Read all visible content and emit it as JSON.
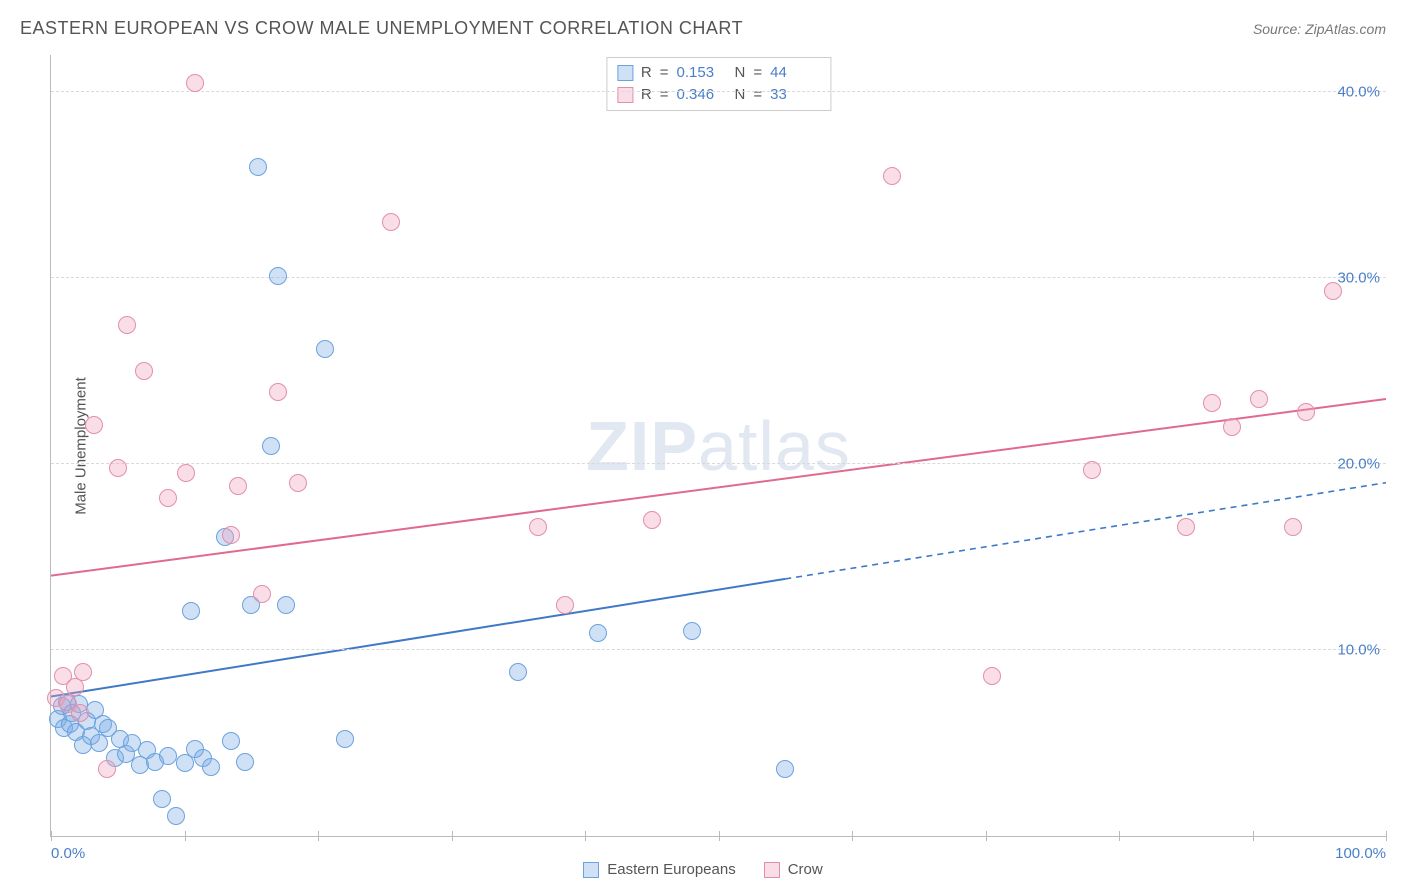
{
  "header": {
    "title": "EASTERN EUROPEAN VS CROW MALE UNEMPLOYMENT CORRELATION CHART",
    "source_label": "Source:",
    "source_name": "ZipAtlas.com"
  },
  "ylabel": "Male Unemployment",
  "watermark": {
    "part1": "ZIP",
    "part2": "atlas"
  },
  "chart": {
    "type": "scatter-with-trend",
    "background_color": "#ffffff",
    "grid_color": "#d9d9d9",
    "axis_color": "#bbbbbb",
    "label_color": "#4a7ec9",
    "title_color": "#555555",
    "xlim": [
      0,
      100
    ],
    "ylim": [
      0,
      42
    ],
    "y_ticks": [
      10,
      20,
      30,
      40
    ],
    "y_tick_labels": [
      "10.0%",
      "20.0%",
      "30.0%",
      "40.0%"
    ],
    "x_ticks": [
      0,
      10,
      20,
      30,
      40,
      50,
      60,
      70,
      80,
      90,
      100
    ],
    "x_tick_labels": {
      "min": "0.0%",
      "max": "100.0%"
    },
    "marker_radius": 9,
    "marker_border_width": 1.5,
    "trend_line_width": 2,
    "series": [
      {
        "name": "Eastern Europeans",
        "fill_color": "rgba(120,170,230,0.35)",
        "border_color": "#6aa3de",
        "trend_color": "#3e78c7",
        "trend": {
          "x0": 0,
          "y0": 7.5,
          "x1": 100,
          "y1": 19.0,
          "solid_until_x": 55
        },
        "r_value": "0.153",
        "n_value": "44",
        "points": [
          [
            0.5,
            6.3
          ],
          [
            0.8,
            7.0
          ],
          [
            1.0,
            5.8
          ],
          [
            1.2,
            7.2
          ],
          [
            1.4,
            6.0
          ],
          [
            1.6,
            6.6
          ],
          [
            1.9,
            5.6
          ],
          [
            2.1,
            7.1
          ],
          [
            2.4,
            4.9
          ],
          [
            2.7,
            6.2
          ],
          [
            3.0,
            5.4
          ],
          [
            3.3,
            6.8
          ],
          [
            3.6,
            5.0
          ],
          [
            3.9,
            6.0
          ],
          [
            4.3,
            5.8
          ],
          [
            4.8,
            4.2
          ],
          [
            5.2,
            5.2
          ],
          [
            5.6,
            4.4
          ],
          [
            6.1,
            5.0
          ],
          [
            6.7,
            3.8
          ],
          [
            7.2,
            4.6
          ],
          [
            7.8,
            4.0
          ],
          [
            8.3,
            2.0
          ],
          [
            8.8,
            4.3
          ],
          [
            9.4,
            1.1
          ],
          [
            10.0,
            3.9
          ],
          [
            10.5,
            12.1
          ],
          [
            10.8,
            4.7
          ],
          [
            11.4,
            4.2
          ],
          [
            12.0,
            3.7
          ],
          [
            13.0,
            16.1
          ],
          [
            13.5,
            5.1
          ],
          [
            14.5,
            4.0
          ],
          [
            15.0,
            12.4
          ],
          [
            15.5,
            36.0
          ],
          [
            16.5,
            21.0
          ],
          [
            17.0,
            30.1
          ],
          [
            17.6,
            12.4
          ],
          [
            20.5,
            26.2
          ],
          [
            22.0,
            5.2
          ],
          [
            35.0,
            8.8
          ],
          [
            41.0,
            10.9
          ],
          [
            48.0,
            11.0
          ],
          [
            55.0,
            3.6
          ]
        ]
      },
      {
        "name": "Crow",
        "fill_color": "rgba(240,160,185,0.35)",
        "border_color": "#e38fab",
        "trend_color": "#e06a8d",
        "trend": {
          "x0": 0,
          "y0": 14.0,
          "x1": 100,
          "y1": 23.5,
          "solid_until_x": 100
        },
        "r_value": "0.346",
        "n_value": "33",
        "points": [
          [
            0.4,
            7.4
          ],
          [
            0.9,
            8.6
          ],
          [
            1.3,
            7.1
          ],
          [
            1.8,
            8.0
          ],
          [
            2.2,
            6.6
          ],
          [
            2.4,
            8.8
          ],
          [
            3.2,
            22.1
          ],
          [
            4.2,
            3.6
          ],
          [
            5.0,
            19.8
          ],
          [
            5.7,
            27.5
          ],
          [
            7.0,
            25.0
          ],
          [
            8.8,
            18.2
          ],
          [
            10.1,
            19.5
          ],
          [
            10.8,
            40.5
          ],
          [
            13.5,
            16.2
          ],
          [
            14.0,
            18.8
          ],
          [
            15.8,
            13.0
          ],
          [
            17.0,
            23.9
          ],
          [
            18.5,
            19.0
          ],
          [
            25.5,
            33.0
          ],
          [
            36.5,
            16.6
          ],
          [
            38.5,
            12.4
          ],
          [
            45.0,
            17.0
          ],
          [
            63.0,
            35.5
          ],
          [
            70.5,
            8.6
          ],
          [
            78.0,
            19.7
          ],
          [
            85.0,
            16.6
          ],
          [
            87.0,
            23.3
          ],
          [
            88.5,
            22.0
          ],
          [
            90.5,
            23.5
          ],
          [
            93.0,
            16.6
          ],
          [
            94.0,
            22.8
          ],
          [
            96.0,
            29.3
          ]
        ]
      }
    ]
  },
  "stats_labels": {
    "r": "R",
    "eq": "=",
    "n": "N"
  }
}
